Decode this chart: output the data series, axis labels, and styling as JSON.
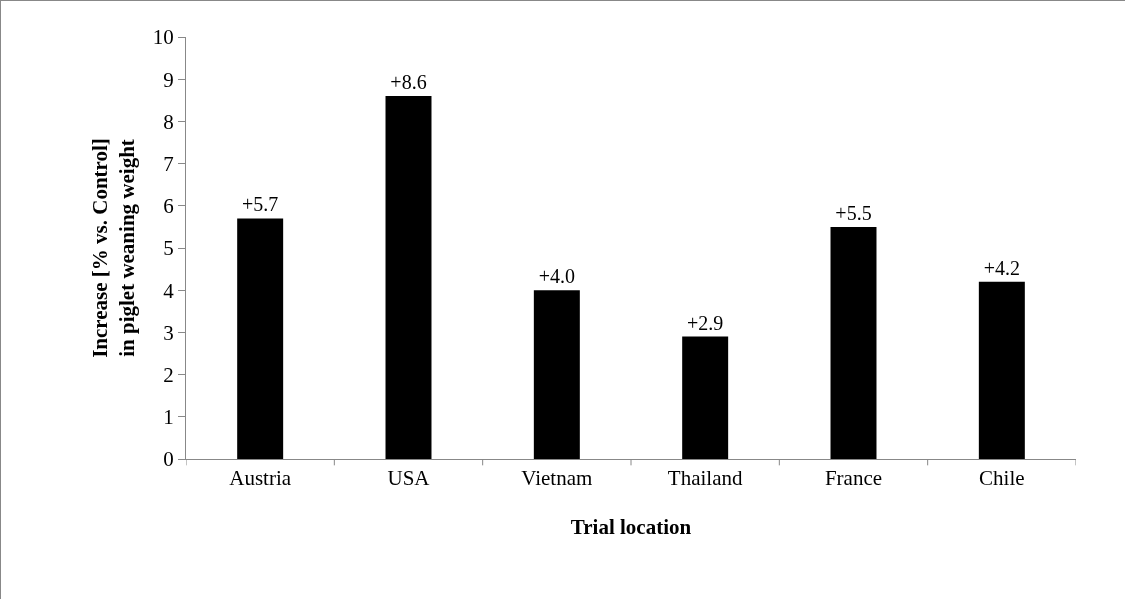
{
  "chart_data": {
    "type": "bar",
    "xlabel": "Trial location",
    "ylabel": "Increase [% vs. Control] in piglet weaning weight",
    "categories": [
      "Austria",
      "USA",
      "Vietnam",
      "Thailand",
      "France",
      "Chile"
    ],
    "values": [
      5.7,
      8.6,
      4.0,
      2.9,
      5.5,
      4.2
    ],
    "value_labels": [
      "+5.7",
      "+8.6",
      "+4.0",
      "+2.9",
      "+5.5",
      "+4.2"
    ],
    "color": "#000000",
    "ylim": [
      0,
      10
    ],
    "yticks": [
      0,
      1,
      2,
      3,
      4,
      5,
      6,
      7,
      8,
      9,
      10
    ]
  }
}
